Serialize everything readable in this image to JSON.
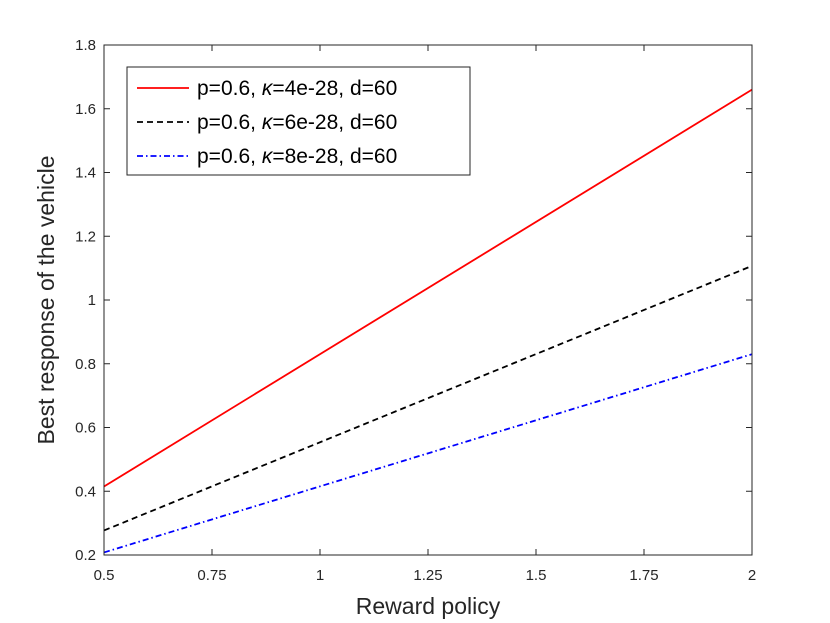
{
  "chart_data": {
    "type": "line",
    "xlabel": "Reward policy",
    "ylabel": "Best response of the vehicle",
    "xlim": [
      0.5,
      2
    ],
    "ylim": [
      0.2,
      1.8
    ],
    "xticks": [
      0.5,
      0.75,
      1,
      1.25,
      1.5,
      1.75,
      2
    ],
    "xtick_labels": [
      "0.5",
      "0.75",
      "1",
      "1.25",
      "1.5",
      "1.75",
      "2"
    ],
    "yticks": [
      0.2,
      0.4,
      0.6,
      0.8,
      1,
      1.2,
      1.4,
      1.6,
      1.8
    ],
    "ytick_labels": [
      "0.2",
      "0.4",
      "0.6",
      "0.8",
      "1",
      "1.2",
      "1.4",
      "1.6",
      "1.8"
    ],
    "grid": false,
    "legend_position": "top-left",
    "series": [
      {
        "name_parts": [
          "p=0.6, ",
          "κ",
          "=4e-28, d=60"
        ],
        "color": "#ff0000",
        "line_style": "solid",
        "x": [
          0.5,
          2
        ],
        "y": [
          0.415,
          1.66
        ]
      },
      {
        "name_parts": [
          "p=0.6, ",
          "κ",
          "=6e-28, d=60"
        ],
        "color": "#000000",
        "line_style": "dashed",
        "x": [
          0.5,
          2
        ],
        "y": [
          0.277,
          1.107
        ]
      },
      {
        "name_parts": [
          "p=0.6, ",
          "κ",
          "=8e-28, d=60"
        ],
        "color": "#0000ff",
        "line_style": "dash-dot",
        "x": [
          0.5,
          2
        ],
        "y": [
          0.208,
          0.83
        ]
      }
    ]
  }
}
